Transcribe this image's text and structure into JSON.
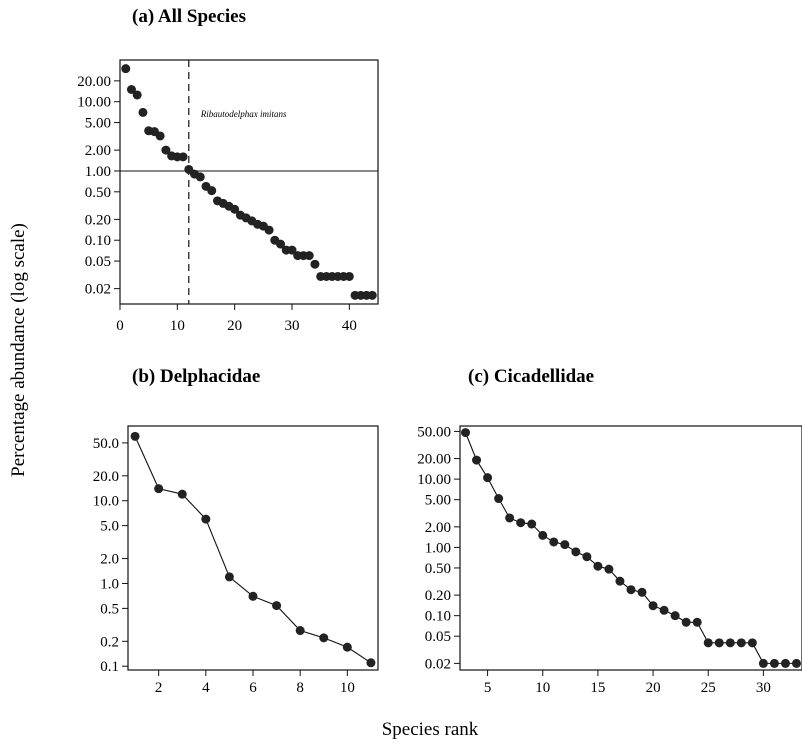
{
  "figure": {
    "ylabel": "Percentage abundance (log scale)",
    "xlabel": "Species rank"
  },
  "chart_data": [
    {
      "id": "a",
      "type": "scatter",
      "title": "(a) All Species",
      "yscale": "log",
      "xlim": [
        0,
        45
      ],
      "ylim": [
        0.012,
        40
      ],
      "xticks": [
        0,
        10,
        20,
        30,
        40
      ],
      "yticks": [
        20,
        10,
        5,
        2,
        1,
        0.5,
        0.2,
        0.1,
        0.05,
        0.02
      ],
      "ytick_labels": [
        "20.00",
        "10.00",
        "5.00",
        "2.00",
        "1.00",
        "0.50",
        "0.20",
        "0.10",
        "0.05",
        "0.02"
      ],
      "hline": 1,
      "vline": 12,
      "annotation": "Ribautodelphax imitans",
      "x": [
        1,
        2,
        3,
        4,
        5,
        6,
        7,
        8,
        9,
        10,
        11,
        12,
        13,
        14,
        15,
        16,
        17,
        18,
        19,
        20,
        21,
        22,
        23,
        24,
        25,
        26,
        27,
        28,
        29,
        30,
        31,
        32,
        33,
        34,
        35,
        36,
        37,
        38,
        39,
        40,
        41,
        42,
        43,
        44
      ],
      "y": [
        30,
        15,
        12.5,
        7,
        3.8,
        3.7,
        3.2,
        2,
        1.65,
        1.6,
        1.6,
        1.05,
        0.9,
        0.82,
        0.6,
        0.52,
        0.37,
        0.34,
        0.31,
        0.28,
        0.23,
        0.21,
        0.19,
        0.17,
        0.16,
        0.14,
        0.1,
        0.088,
        0.072,
        0.072,
        0.06,
        0.06,
        0.06,
        0.045,
        0.03,
        0.03,
        0.03,
        0.03,
        0.03,
        0.03,
        0.016,
        0.016,
        0.016,
        0.016
      ]
    },
    {
      "id": "b",
      "type": "line",
      "title": "(b) Delphacidae",
      "yscale": "log",
      "xlim": [
        0.7,
        11.3
      ],
      "ylim": [
        0.09,
        80
      ],
      "xticks": [
        2,
        4,
        6,
        8,
        10
      ],
      "yticks": [
        50,
        20,
        10,
        5,
        2,
        1,
        0.5,
        0.2,
        0.1
      ],
      "ytick_labels": [
        "50.0",
        "20.0",
        "10.0",
        "5.0",
        "2.0",
        "1.0",
        "0.5",
        "0.2",
        "0.1"
      ],
      "x": [
        1,
        2,
        3,
        4,
        5,
        6,
        7,
        8,
        9,
        10,
        11
      ],
      "y": [
        60,
        14,
        12,
        6,
        1.2,
        0.7,
        0.54,
        0.27,
        0.22,
        0.17,
        0.11
      ]
    },
    {
      "id": "c",
      "type": "line",
      "title": "(c) Cicadellidae",
      "yscale": "log",
      "xlim": [
        2.5,
        33.5
      ],
      "ylim": [
        0.016,
        60
      ],
      "xticks": [
        5,
        10,
        15,
        20,
        25,
        30
      ],
      "yticks": [
        50,
        20,
        10,
        5,
        2,
        1,
        0.5,
        0.2,
        0.1,
        0.05,
        0.02
      ],
      "ytick_labels": [
        "50.00",
        "20.00",
        "10.00",
        "5.00",
        "2.00",
        "1.00",
        "0.50",
        "0.20",
        "0.10",
        "0.05",
        "0.02"
      ],
      "x": [
        3,
        4,
        5,
        6,
        7,
        8,
        9,
        10,
        11,
        12,
        13,
        14,
        15,
        16,
        17,
        18,
        19,
        20,
        21,
        22,
        23,
        24,
        25,
        26,
        27,
        28,
        29,
        30,
        31,
        32,
        33
      ],
      "y": [
        48,
        19,
        10.5,
        5.2,
        2.7,
        2.3,
        2.2,
        1.5,
        1.2,
        1.1,
        0.86,
        0.73,
        0.53,
        0.48,
        0.32,
        0.24,
        0.22,
        0.14,
        0.12,
        0.1,
        0.08,
        0.08,
        0.04,
        0.04,
        0.04,
        0.04,
        0.04,
        0.02,
        0.02,
        0.02,
        0.02
      ]
    }
  ]
}
